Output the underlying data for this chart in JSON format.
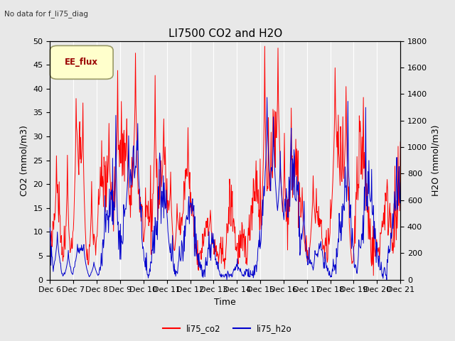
{
  "title": "LI7500 CO2 and H2O",
  "subtitle": "No data for f_li75_diag",
  "xlabel": "Time",
  "ylabel_left": "CO2 (mmol/m3)",
  "ylabel_right": "H2O (mmol/m3)",
  "ylim_left": [
    0,
    50
  ],
  "ylim_right": [
    0,
    1800
  ],
  "yticks_left": [
    0,
    5,
    10,
    15,
    20,
    25,
    30,
    35,
    40,
    45,
    50
  ],
  "yticks_right": [
    0,
    200,
    400,
    600,
    800,
    1000,
    1200,
    1400,
    1600,
    1800
  ],
  "x_tick_labels": [
    "Dec 6",
    "Dec 7",
    "Dec 8",
    "Dec 9",
    "Dec 10",
    "Dec 11",
    "Dec 12",
    "Dec 13",
    "Dec 14",
    "Dec 15",
    "Dec 16",
    "Dec 17",
    "Dec 18",
    "Dec 19",
    "Dec 20",
    "Dec 21"
  ],
  "legend_label_co2": "li75_co2",
  "legend_label_h2o": "li75_h2o",
  "color_co2": "#ff0000",
  "color_h2o": "#0000cc",
  "legend_box_label": "EE_flux",
  "background_color": "#e8e8e8",
  "plot_bg_color": "#ebebeb",
  "grid_color": "white",
  "title_fontsize": 11,
  "label_fontsize": 9,
  "tick_fontsize": 8
}
